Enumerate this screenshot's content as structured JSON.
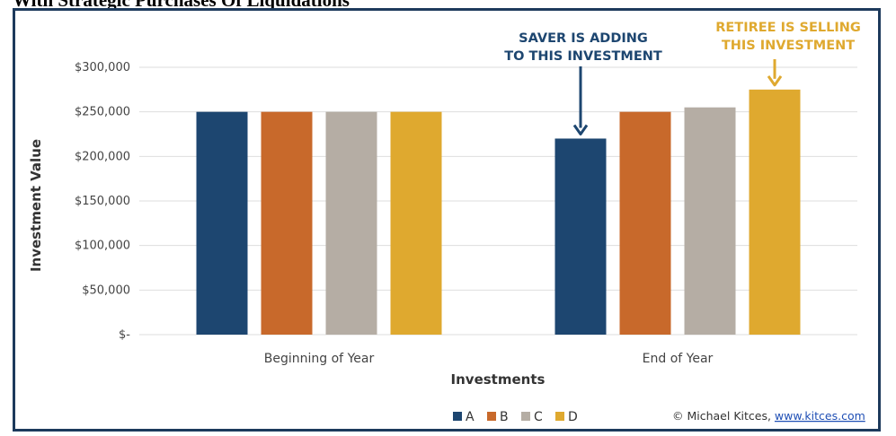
{
  "page": {
    "title": "With Strategic Purchases Of Liquidations"
  },
  "chart_data": {
    "type": "bar",
    "categories": [
      "Beginning of Year",
      "End of Year"
    ],
    "series": [
      {
        "name": "A",
        "values": [
          250000,
          220000
        ],
        "color": "#1d4670"
      },
      {
        "name": "B",
        "values": [
          250000,
          250000
        ],
        "color": "#c8692b"
      },
      {
        "name": "C",
        "values": [
          250000,
          255000
        ],
        "color": "#b5ada4"
      },
      {
        "name": "D",
        "values": [
          250000,
          275000
        ],
        "color": "#dfa92f"
      }
    ],
    "title": "",
    "xlabel": "Investments",
    "ylabel": "Investment Value",
    "ylim": [
      0,
      300000
    ],
    "yticks": [
      0,
      50000,
      100000,
      150000,
      200000,
      250000,
      300000
    ],
    "ytick_labels": [
      "$-",
      "$50,000",
      "$100,000",
      "$150,000",
      "$200,000",
      "$250,000",
      "$300,000"
    ],
    "grid": true,
    "legend_position": "bottom",
    "annotations": [
      {
        "lines": [
          "SAVER IS ADDING",
          "TO THIS INVESTMENT"
        ],
        "series": "A",
        "category": "End of Year",
        "color": "#1d4670"
      },
      {
        "lines": [
          "RETIREE IS SELLING",
          "THIS INVESTMENT"
        ],
        "series": "D",
        "category": "End of Year",
        "color": "#dfa92f"
      }
    ]
  },
  "footer": {
    "copyright_prefix": "© Michael Kitces, ",
    "link_text": "www.kitces.com"
  }
}
